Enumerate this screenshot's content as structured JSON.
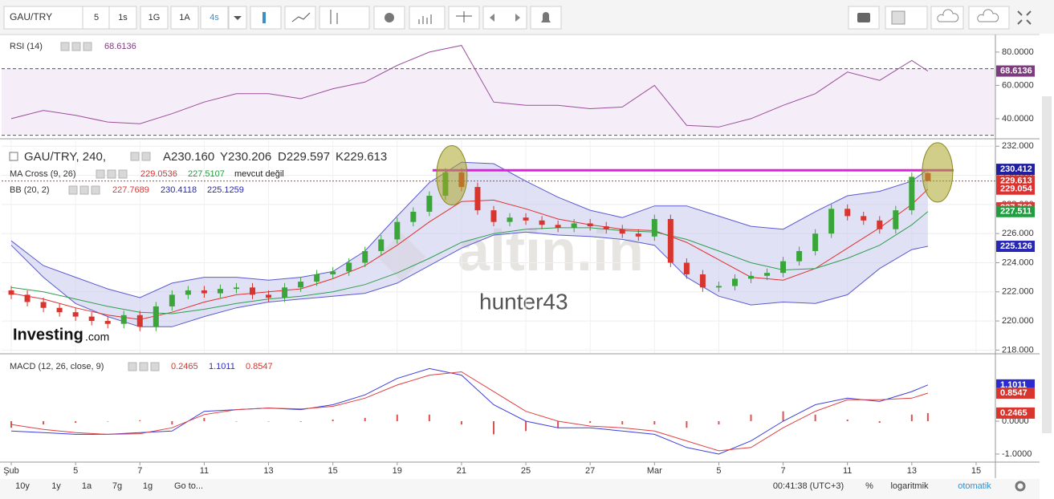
{
  "toolbar": {
    "symbol": "GAU/TRY",
    "intervals": [
      "5",
      "1s",
      "1G",
      "1A",
      "4s"
    ],
    "active": 4
  },
  "bottom_bar": {
    "ranges": [
      "10y",
      "1y",
      "1a",
      "7g",
      "1g"
    ],
    "goto": "Go to...",
    "time": "00:41:38 (UTC+3)",
    "percent": "%",
    "log": "logaritmik",
    "auto": "otomatik"
  },
  "chart_data": [
    {
      "type": "candlestick",
      "legend": {
        "name": "GAU/TRY, 240,",
        "ohlc": [
          "A230.160",
          "Y230.206",
          "D229.597",
          "K229.613"
        ],
        "ma_name": "MA Cross (9, 26)",
        "ma_values": [
          229.0536,
          227.5107
        ],
        "ma_note": "mevcut değil",
        "bb_name": "BB (20, 2)",
        "bb_values": [
          227.7689,
          230.4118,
          225.1259
        ]
      },
      "watermarks": [
        "altin.in",
        "hunter43"
      ],
      "branding": [
        "Investing",
        ".com"
      ],
      "xlim": [
        -0.3,
        30.6
      ],
      "xticks": [
        {
          "value": 0,
          "label": "Şub"
        },
        {
          "value": 2,
          "label": "5"
        },
        {
          "value": 4,
          "label": "7"
        },
        {
          "value": 6,
          "label": "11"
        },
        {
          "value": 8,
          "label": "13"
        },
        {
          "value": 10,
          "label": "15"
        },
        {
          "value": 12,
          "label": "19"
        },
        {
          "value": 14,
          "label": "21"
        },
        {
          "value": 16,
          "label": "25"
        },
        {
          "value": 18,
          "label": "27"
        },
        {
          "value": 20,
          "label": "Mar"
        },
        {
          "value": 22,
          "label": "5"
        },
        {
          "value": 24,
          "label": "7"
        },
        {
          "value": 26,
          "label": "11"
        },
        {
          "value": 28,
          "label": "13"
        },
        {
          "value": 30,
          "label": "15"
        }
      ],
      "ylim": [
        217.8,
        232.4
      ],
      "yticks": [
        {
          "value": 218,
          "label": "218.000"
        },
        {
          "value": 220,
          "label": "220.000"
        },
        {
          "value": 222,
          "label": "222.000"
        },
        {
          "value": 224,
          "label": "224.000"
        },
        {
          "value": 226,
          "label": "226.000"
        },
        {
          "value": 228,
          "label": "228.000"
        },
        {
          "value": 230,
          "label": "230.000"
        },
        {
          "value": 232,
          "label": "232.000"
        }
      ],
      "grid": true,
      "up_color": "#3aa63a",
      "down_color": "#d8352e",
      "x": [
        0,
        0.5,
        1,
        1.5,
        2,
        2.5,
        3,
        3.5,
        4,
        4.5,
        5,
        5.5,
        6,
        6.5,
        7,
        7.5,
        8,
        8.5,
        9,
        9.5,
        10,
        10.5,
        11,
        11.5,
        12,
        12.5,
        13,
        13.5,
        14,
        14.5,
        15,
        15.5,
        16,
        16.5,
        17,
        17.5,
        18,
        18.5,
        19,
        19.5,
        20,
        20.5,
        21,
        21.5,
        22,
        22.5,
        23,
        23.5,
        24,
        24.5,
        25,
        25.5,
        26,
        26.5,
        27,
        27.5,
        28,
        28.5
      ],
      "open": [
        222.1,
        221.8,
        221.3,
        220.9,
        220.6,
        220.3,
        220.0,
        219.8,
        220.4,
        219.6,
        221.0,
        221.8,
        222.1,
        221.9,
        222.2,
        222.3,
        221.8,
        221.6,
        222.3,
        222.7,
        223.2,
        223.4,
        224.0,
        224.8,
        225.6,
        226.8,
        227.5,
        228.6,
        230.2,
        229.2,
        227.6,
        226.8,
        227.1,
        226.9,
        226.6,
        226.4,
        226.7,
        226.5,
        226.3,
        226.0,
        225.8,
        227.0,
        224.0,
        223.2,
        222.3,
        222.4,
        222.9,
        223.1,
        223.3,
        224.1,
        224.8,
        226.0,
        227.7,
        227.2,
        226.9,
        226.3,
        227.6,
        230.16
      ],
      "high": [
        222.4,
        222.1,
        221.6,
        221.2,
        220.9,
        220.6,
        220.3,
        220.7,
        220.7,
        221.3,
        222.1,
        222.4,
        222.4,
        222.5,
        222.6,
        222.6,
        222.1,
        222.6,
        223.0,
        223.5,
        223.7,
        224.3,
        225.1,
        225.9,
        227.1,
        227.8,
        228.9,
        230.5,
        230.5,
        229.5,
        227.9,
        227.4,
        227.4,
        227.2,
        226.9,
        227.0,
        227.0,
        226.8,
        226.6,
        226.3,
        227.3,
        227.3,
        224.3,
        223.5,
        222.7,
        223.2,
        223.4,
        223.6,
        224.4,
        225.1,
        226.3,
        228.0,
        228.0,
        227.5,
        227.2,
        227.9,
        230.2,
        230.206
      ],
      "low": [
        221.5,
        221.0,
        220.6,
        220.3,
        220.0,
        219.7,
        219.5,
        219.5,
        219.3,
        219.3,
        220.7,
        221.5,
        221.6,
        221.6,
        221.9,
        221.5,
        221.3,
        221.3,
        222.0,
        222.4,
        222.9,
        223.1,
        223.7,
        224.5,
        225.3,
        226.5,
        227.2,
        228.3,
        228.9,
        227.3,
        226.5,
        226.5,
        226.6,
        226.3,
        226.1,
        226.1,
        226.2,
        226.0,
        225.7,
        225.5,
        225.5,
        223.7,
        222.9,
        222.0,
        222.0,
        222.1,
        222.6,
        222.8,
        223.0,
        223.8,
        224.5,
        225.7,
        226.9,
        226.6,
        226.0,
        226.0,
        227.3,
        229.597
      ],
      "close": [
        221.8,
        221.3,
        220.9,
        220.6,
        220.3,
        220.0,
        219.8,
        220.4,
        219.6,
        221.0,
        221.8,
        222.1,
        221.9,
        222.2,
        222.3,
        221.8,
        221.6,
        222.3,
        222.7,
        223.2,
        223.4,
        224.0,
        224.8,
        225.6,
        226.8,
        227.5,
        228.6,
        230.2,
        229.2,
        227.6,
        226.8,
        227.1,
        226.9,
        226.6,
        226.4,
        226.7,
        226.5,
        226.3,
        226.0,
        225.8,
        227.0,
        224.0,
        223.2,
        222.3,
        222.4,
        222.9,
        223.1,
        223.3,
        224.1,
        224.8,
        226.0,
        227.7,
        227.2,
        226.9,
        226.3,
        227.6,
        229.9,
        229.613
      ],
      "ind_x": [
        0,
        1,
        2,
        3,
        4,
        5,
        6,
        7,
        8,
        9,
        10,
        11,
        12,
        13,
        14,
        15,
        16,
        17,
        18,
        19,
        20,
        21,
        22,
        23,
        24,
        25,
        26,
        27,
        28,
        28.5
      ],
      "bb": {
        "color": "#5a5ad0",
        "fill": "#c9c9ec",
        "upper": [
          225.5,
          223.8,
          223.0,
          222.2,
          221.6,
          222.6,
          223.0,
          223.0,
          222.8,
          223.0,
          223.4,
          224.8,
          227.2,
          229.5,
          230.9,
          230.8,
          229.6,
          228.5,
          227.6,
          227.1,
          227.9,
          227.9,
          227.2,
          226.5,
          226.3,
          227.5,
          228.6,
          228.9,
          229.6,
          230.412
        ],
        "lower": [
          225.2,
          223.0,
          221.2,
          220.3,
          219.6,
          219.6,
          220.3,
          220.9,
          221.3,
          221.5,
          221.7,
          221.9,
          222.6,
          223.8,
          225.0,
          225.9,
          226.1,
          225.9,
          225.8,
          225.6,
          225.2,
          223.0,
          221.7,
          221.1,
          221.3,
          221.2,
          221.8,
          223.6,
          224.9,
          225.126
        ]
      },
      "ma": [
        {
          "color": "#e03030",
          "values": [
            221.9,
            221.5,
            220.9,
            220.4,
            220.1,
            220.6,
            221.3,
            221.8,
            222.0,
            222.2,
            222.9,
            223.8,
            225.2,
            226.8,
            228.2,
            228.3,
            227.7,
            227.0,
            226.6,
            226.3,
            226.2,
            225.4,
            224.2,
            223.0,
            222.8,
            223.6,
            225.0,
            226.4,
            228.0,
            229.054
          ]
        },
        {
          "color": "#2f9e4f",
          "values": [
            222.3,
            222.0,
            221.5,
            221.0,
            220.6,
            220.5,
            220.8,
            221.2,
            221.5,
            221.7,
            222.0,
            222.5,
            223.3,
            224.3,
            225.4,
            226.0,
            226.3,
            226.4,
            226.4,
            226.2,
            226.1,
            225.6,
            224.8,
            224.0,
            223.5,
            223.6,
            224.3,
            225.2,
            226.6,
            227.511
          ]
        }
      ],
      "trendline": {
        "x": [
          13.1,
          29.3
        ],
        "y": 230.35,
        "color": "#e020e0"
      },
      "ellipses": [
        {
          "x": 13.7,
          "y": 230.0
        },
        {
          "x": 28.8,
          "y": 230.2
        }
      ],
      "price_tags": [
        {
          "value": 230.412,
          "color": "#1f1fa0"
        },
        {
          "value": 229.613,
          "color": "#d8352e"
        },
        {
          "value": 229.054,
          "color": "#e03030"
        },
        {
          "value": 227.769,
          "color": "#d63b3b"
        },
        {
          "value": 227.511,
          "color": "#1e9e3e"
        },
        {
          "value": 225.126,
          "color": "#2828b4"
        }
      ]
    },
    {
      "type": "line",
      "legend": {
        "name": "RSI (14)",
        "value": 68.6136
      },
      "ylim": [
        28.4,
        89.6
      ],
      "yticks": [
        {
          "value": 40,
          "label": "40.0000"
        },
        {
          "value": 60,
          "label": "60.0000"
        },
        {
          "value": 80,
          "label": "80.0000"
        }
      ],
      "levels": [
        70,
        30
      ],
      "x": [
        0,
        1,
        2,
        3,
        4,
        5,
        6,
        7,
        8,
        9,
        10,
        11,
        12,
        13,
        14,
        15,
        16,
        17,
        18,
        19,
        20,
        21,
        22,
        23,
        24,
        25,
        26,
        27,
        28,
        28.5
      ],
      "series": [
        {
          "color": "#9c4d9c",
          "values": [
            40,
            45,
            42,
            38,
            37,
            43,
            50,
            55,
            55,
            52,
            58,
            62,
            72,
            80,
            84,
            50,
            48,
            48,
            46,
            47,
            60,
            36,
            35,
            40,
            48,
            55,
            68,
            63,
            75,
            68.6136
          ]
        }
      ],
      "price_tags": [
        {
          "value": 68.6136,
          "color": "#7d3c7d"
        }
      ]
    },
    {
      "type": "macd",
      "legend": {
        "name": "MACD (12, 26, close, 9)",
        "values": [
          0.2465,
          1.1011,
          0.8547
        ]
      },
      "ylim": [
        -1.22,
        2.0
      ],
      "yticks": [
        {
          "value": 0,
          "label": "0.0000"
        },
        {
          "value": -1,
          "label": "-1.0000"
        }
      ],
      "x": [
        0,
        1,
        2,
        3,
        4,
        5,
        6,
        7,
        8,
        9,
        10,
        11,
        12,
        13,
        14,
        15,
        16,
        17,
        18,
        19,
        20,
        21,
        22,
        23,
        24,
        25,
        26,
        27,
        28,
        28.5
      ],
      "histogram": {
        "color": "#e05050",
        "values": [
          -0.2,
          -0.1,
          -0.05,
          0,
          0.03,
          -0.1,
          0.1,
          0,
          0,
          -0.02,
          0.05,
          0.1,
          0.2,
          0.2,
          -0.1,
          -0.4,
          -0.3,
          -0.2,
          -0.05,
          -0.1,
          -0.1,
          -0.2,
          -0.1,
          0.2,
          0.3,
          0.2,
          0.05,
          -0.05,
          0.2,
          0.2465
        ]
      },
      "series": [
        {
          "color": "#3d3de0",
          "values": [
            -0.3,
            -0.35,
            -0.4,
            -0.4,
            -0.35,
            -0.3,
            0.3,
            0.35,
            0.4,
            0.35,
            0.5,
            0.8,
            1.3,
            1.6,
            1.4,
            0.5,
            0,
            -0.2,
            -0.2,
            -0.3,
            -0.4,
            -0.8,
            -1.0,
            -0.6,
            0,
            0.5,
            0.7,
            0.6,
            0.9,
            1.1011
          ]
        },
        {
          "color": "#e04040",
          "values": [
            -0.1,
            -0.25,
            -0.35,
            -0.4,
            -0.38,
            -0.2,
            0.2,
            0.35,
            0.4,
            0.37,
            0.45,
            0.7,
            1.1,
            1.4,
            1.5,
            0.9,
            0.3,
            0,
            -0.15,
            -0.2,
            -0.3,
            -0.6,
            -0.9,
            -0.8,
            -0.2,
            0.3,
            0.65,
            0.65,
            0.7,
            0.8547
          ]
        }
      ],
      "price_tags": [
        {
          "value": 1.1011,
          "color": "#2a2ad0"
        },
        {
          "value": 0.8547,
          "color": "#d8352e"
        },
        {
          "value": 0.2465,
          "color": "#d8352e"
        }
      ]
    }
  ]
}
